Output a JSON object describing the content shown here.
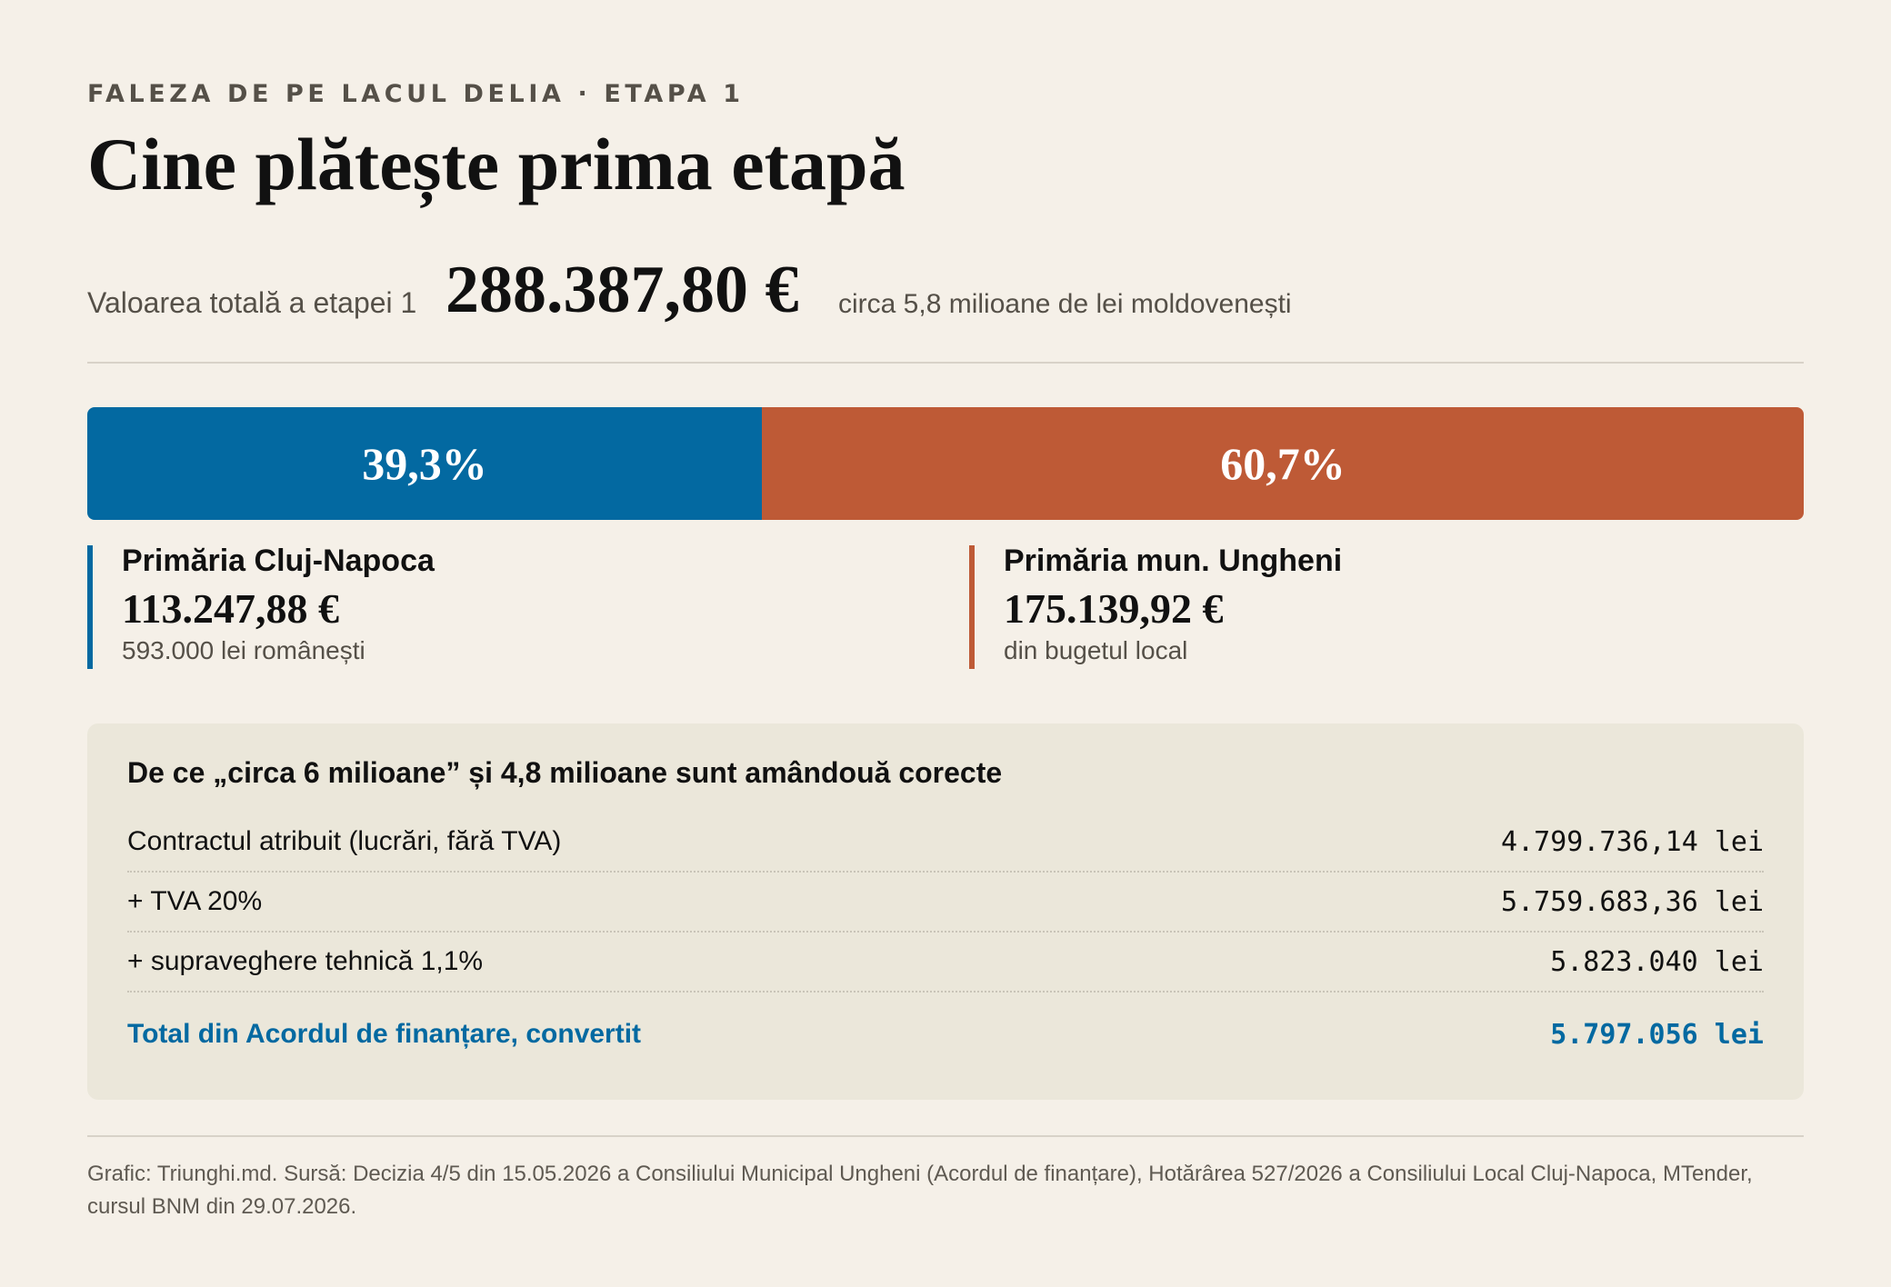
{
  "kicker": "FALEZA DE PE LACUL DELIA · ETAPA 1",
  "title": "Cine plătește prima etapă",
  "total": {
    "label": "Valoarea totală a etapei 1",
    "value": "288.387,80 €",
    "note": "circa 5,8 milioane de lei moldovenești"
  },
  "colors": {
    "cluj": "#0369a1",
    "ungheni": "#be5a36"
  },
  "chart_data": {
    "type": "bar",
    "stacked": true,
    "orientation": "horizontal",
    "categories": [
      "Primăria Cluj-Napoca",
      "Primăria mun. Ungheni"
    ],
    "values": [
      39.3,
      60.7
    ],
    "value_labels": [
      "39,3%",
      "60,7%"
    ],
    "unit": "%",
    "xlim": [
      0,
      100
    ]
  },
  "parties": [
    {
      "name": "Primăria Cluj-Napoca",
      "amount": "113.247,88 €",
      "note": "593.000 lei românești"
    },
    {
      "name": "Primăria mun. Ungheni",
      "amount": "175.139,92 €",
      "note": "din bugetul local"
    }
  ],
  "breakdown": {
    "title": "De ce „circa 6 milioane” și 4,8 milioane sunt amândouă corecte",
    "rows": [
      {
        "label": "Contractul atribuit (lucrări, fără TVA)",
        "value": "4.799.736,14 lei"
      },
      {
        "label": "+ TVA 20%",
        "value": "5.759.683,36 lei"
      },
      {
        "label": "+ supraveghere tehnică 1,1%",
        "value": "5.823.040 lei"
      }
    ],
    "total": {
      "label": "Total din Acordul de finanțare, convertit",
      "value": "5.797.056 lei"
    }
  },
  "footer": "Grafic: Triunghi.md. Sursă: Decizia 4/5 din 15.05.2026 a Consiliului Municipal Ungheni (Acordul de finanțare), Hotărârea 527/2026 a Consiliului Local Cluj-Napoca, MTender, cursul BNM din 29.07.2026."
}
